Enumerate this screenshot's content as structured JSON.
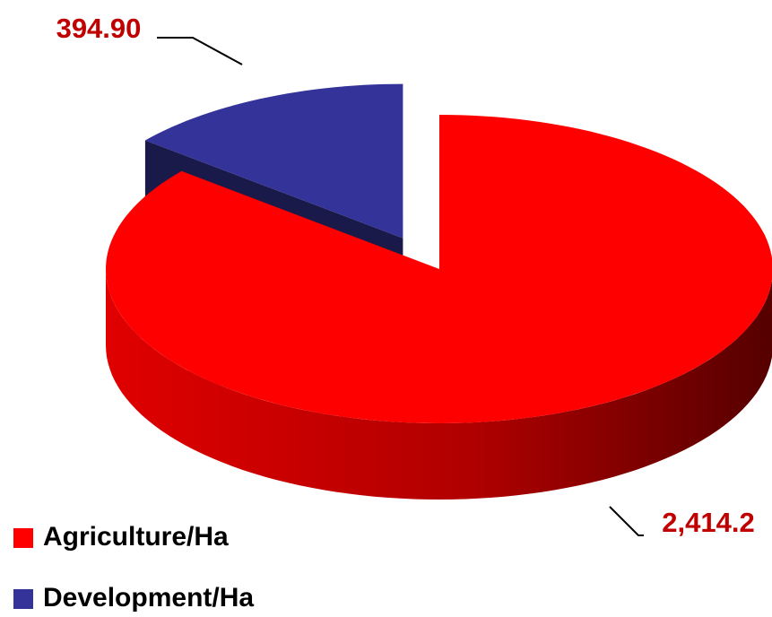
{
  "chart_data": {
    "type": "pie3d",
    "categories": [
      "Agriculture/Ha",
      "Development/Ha"
    ],
    "values": [
      2414.2,
      394.9
    ],
    "value_labels": [
      "2,414.2",
      "394.90"
    ],
    "colors": [
      "#ff0000",
      "#333399"
    ],
    "legend": "bottom-left"
  }
}
